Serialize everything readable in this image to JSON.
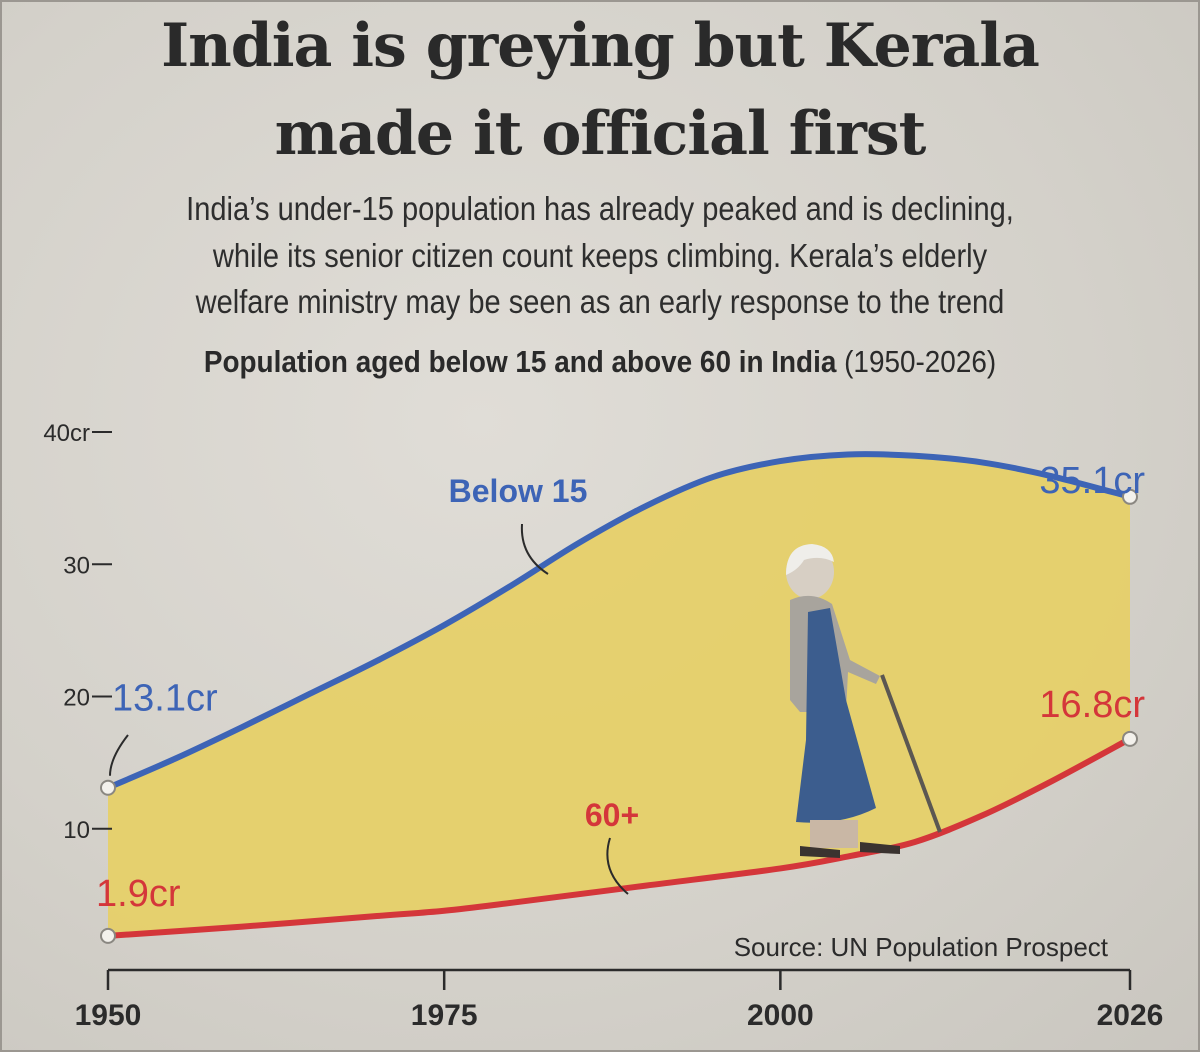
{
  "headline": {
    "line1": "India is greying but Kerala",
    "line2": "made it official first"
  },
  "dek": {
    "line1": "India’s under-15 population has already peaked and is declining,",
    "line2": "while its senior citizen count keeps climbing. Kerala’s elderly",
    "line3": "welfare ministry may be seen as an early response to the trend"
  },
  "chart_title": {
    "bold": "Population aged below 15 and above 60 in India",
    "range": "(1950-2026)"
  },
  "source": "Source: UN Population Prospect",
  "chart_data": {
    "type": "area",
    "title": "Population aged below 15 and above 60 in India (1950-2026)",
    "xlim": [
      1950,
      2026
    ],
    "ylim": [
      0,
      40
    ],
    "x_ticks": [
      1950,
      1975,
      2000,
      2026
    ],
    "x_tick_labels": [
      "1950",
      "1975",
      "2000",
      "2026"
    ],
    "y_ticks": [
      10,
      20,
      30,
      40
    ],
    "y_tick_labels": [
      "10",
      "20",
      "30",
      "40cr"
    ],
    "grid": false,
    "fill_between_color": "#e6cf66",
    "series": [
      {
        "name": "Below 15",
        "color": "#3d64b6",
        "x": [
          1950,
          1955,
          1960,
          1965,
          1970,
          1975,
          1980,
          1985,
          1990,
          1995,
          2000,
          2005,
          2010,
          2015,
          2020,
          2026
        ],
        "values": [
          13.1,
          15.3,
          17.7,
          20.2,
          22.7,
          25.4,
          28.4,
          31.6,
          34.4,
          36.6,
          37.8,
          38.3,
          38.2,
          37.7,
          36.7,
          35.1
        ]
      },
      {
        "name": "60+",
        "color": "#d4363a",
        "x": [
          1950,
          1960,
          1970,
          1975,
          1980,
          1990,
          2000,
          2005,
          2010,
          2015,
          2020,
          2026
        ],
        "values": [
          1.9,
          2.6,
          3.4,
          3.8,
          4.4,
          5.7,
          7.0,
          7.9,
          9.0,
          11.0,
          13.5,
          16.8
        ]
      }
    ],
    "annotations": [
      {
        "text": "13.1cr",
        "series": "Below 15",
        "x": 1950,
        "y": 13.1
      },
      {
        "text": "35.1cr",
        "series": "Below 15",
        "x": 2026,
        "y": 35.1
      },
      {
        "text": "1.9cr",
        "series": "60+",
        "x": 1950,
        "y": 1.9
      },
      {
        "text": "16.8cr",
        "series": "60+",
        "x": 2026,
        "y": 16.8
      },
      {
        "text": "Below 15",
        "series": "Below 15",
        "x": 1972,
        "y": 27.5
      },
      {
        "text": "60+",
        "series": "60+",
        "x": 1972,
        "y": 9
      }
    ],
    "illustration": "elderly-woman-with-walking-stick"
  }
}
